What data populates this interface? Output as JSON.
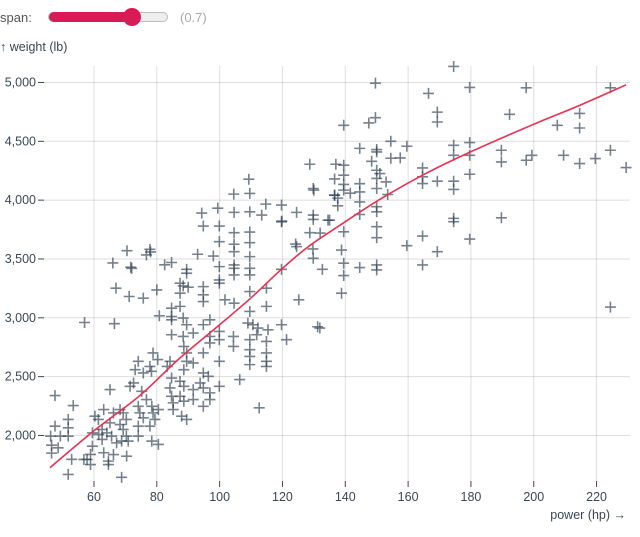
{
  "controls": {
    "span_label": "span:",
    "span_value": 0.7,
    "span_display": "(0.7)",
    "span_min": 0,
    "span_max": 1,
    "accent_color": "#d81b56"
  },
  "chart_data": {
    "type": "scatter",
    "xlabel": "power (hp) →",
    "ylabel": "↑ weight (lb)",
    "xlim": [
      46,
      230
    ],
    "ylim": [
      1613,
      5140
    ],
    "grid": true,
    "x_ticks": [
      60,
      80,
      100,
      120,
      140,
      160,
      180,
      200,
      220
    ],
    "y_ticks": [
      2000,
      2500,
      3000,
      3500,
      4000,
      4500,
      5000
    ],
    "y_tick_labels": [
      "2,000",
      "2,500",
      "3,000",
      "3,500",
      "4,000",
      "4,500",
      "5,000"
    ],
    "marker": "plus",
    "point_color": "#2c3e50",
    "line_color": "#e8304f",
    "points": [
      [
        174.5,
        5136
      ],
      [
        149.6,
        4994
      ],
      [
        179.6,
        4958
      ],
      [
        197.6,
        4955
      ],
      [
        224.4,
        4955
      ],
      [
        166.5,
        4907
      ],
      [
        169.3,
        4748
      ],
      [
        169.3,
        4664
      ],
      [
        192.3,
        4729
      ],
      [
        214.6,
        4737
      ],
      [
        214.6,
        4613
      ],
      [
        207.5,
        4636
      ],
      [
        139.5,
        4636
      ],
      [
        147.5,
        4656
      ],
      [
        149.6,
        4701
      ],
      [
        150,
        4430
      ],
      [
        150,
        4410
      ],
      [
        154.5,
        4500
      ],
      [
        159.6,
        4458
      ],
      [
        144.6,
        4440
      ],
      [
        148.4,
        4330
      ],
      [
        154.5,
        4356
      ],
      [
        157.5,
        4359
      ],
      [
        139.5,
        4297
      ],
      [
        139.5,
        4212
      ],
      [
        139.5,
        4133
      ],
      [
        139.5,
        4085
      ],
      [
        136.6,
        4042
      ],
      [
        137.6,
        3952
      ],
      [
        141.6,
        4059
      ],
      [
        144.6,
        4140
      ],
      [
        144.6,
        4070
      ],
      [
        144.6,
        3985
      ],
      [
        144.6,
        3878
      ],
      [
        150,
        4254
      ],
      [
        150,
        4184
      ],
      [
        150,
        4099
      ],
      [
        150,
        3944
      ],
      [
        150,
        3901
      ],
      [
        150,
        3774
      ],
      [
        150,
        3681
      ],
      [
        151,
        4226
      ],
      [
        153,
        4155
      ],
      [
        153.5,
        4048
      ],
      [
        164.6,
        4274
      ],
      [
        164.6,
        4198
      ],
      [
        164.6,
        4141
      ],
      [
        169.3,
        4161
      ],
      [
        174.5,
        4466
      ],
      [
        174.5,
        4381
      ],
      [
        174.5,
        4161
      ],
      [
        174.5,
        4091
      ],
      [
        174.5,
        3845
      ],
      [
        174.5,
        3817
      ],
      [
        179.6,
        4489
      ],
      [
        179.6,
        4381
      ],
      [
        179.6,
        4220
      ],
      [
        179.6,
        3669
      ],
      [
        189.7,
        4424
      ],
      [
        189.7,
        4325
      ],
      [
        189.7,
        3850
      ],
      [
        197.6,
        4339
      ],
      [
        199.4,
        4381
      ],
      [
        209.5,
        4381
      ],
      [
        214.6,
        4311
      ],
      [
        219.6,
        4353
      ],
      [
        224.4,
        4424
      ],
      [
        229.4,
        4277
      ],
      [
        224.4,
        3091
      ],
      [
        139.5,
        3731
      ],
      [
        138.8,
        3576
      ],
      [
        139.5,
        3464
      ],
      [
        139.5,
        3359
      ],
      [
        138.8,
        3209
      ],
      [
        144.6,
        3427
      ],
      [
        150,
        3449
      ],
      [
        150,
        3407
      ],
      [
        159.6,
        3613
      ],
      [
        164.6,
        3695
      ],
      [
        164.6,
        3449
      ],
      [
        169.3,
        3562
      ],
      [
        135,
        3830
      ],
      [
        109.6,
        4057
      ],
      [
        129.8,
        4099
      ],
      [
        136.6,
        4042
      ],
      [
        119.7,
        3958
      ],
      [
        124.5,
        3896
      ],
      [
        129.8,
        3873
      ],
      [
        129.8,
        3836
      ],
      [
        134.5,
        3830
      ],
      [
        104.6,
        3896
      ],
      [
        109.6,
        3901
      ],
      [
        119.7,
        3816
      ],
      [
        94.8,
        3780
      ],
      [
        99.9,
        3780
      ],
      [
        104.6,
        3723
      ],
      [
        109.6,
        3729
      ],
      [
        128.7,
        3723
      ],
      [
        99.9,
        3647
      ],
      [
        104.6,
        3625
      ],
      [
        104.6,
        3562
      ],
      [
        104.6,
        3449
      ],
      [
        104.6,
        3421
      ],
      [
        104.6,
        3364
      ],
      [
        109.6,
        3638
      ],
      [
        109.6,
        3520
      ],
      [
        109.6,
        3421
      ],
      [
        109.6,
        3364
      ],
      [
        124.5,
        3605
      ],
      [
        129.8,
        3506
      ],
      [
        132.7,
        3412
      ],
      [
        119.7,
        3412
      ],
      [
        98,
        3525
      ],
      [
        99.9,
        3435
      ],
      [
        99.9,
        3322
      ],
      [
        99.9,
        3294
      ],
      [
        77.8,
        3582
      ],
      [
        76.7,
        3534
      ],
      [
        84.7,
        3470
      ],
      [
        89.5,
        3412
      ],
      [
        89.5,
        3379
      ],
      [
        71.7,
        3430
      ],
      [
        67,
        3252
      ],
      [
        71.2,
        3181
      ],
      [
        75.7,
        3167
      ],
      [
        80,
        3237
      ],
      [
        87.4,
        3294
      ],
      [
        88.4,
        3271
      ],
      [
        87.4,
        3209
      ],
      [
        94.8,
        3265
      ],
      [
        94.8,
        3195
      ],
      [
        94.8,
        3138
      ],
      [
        101.7,
        3153
      ],
      [
        104.6,
        3124
      ],
      [
        109.6,
        3223
      ],
      [
        114.9,
        3252
      ],
      [
        114.9,
        3097
      ],
      [
        109.6,
        3054
      ],
      [
        109,
        2955
      ],
      [
        110.6,
        2941
      ],
      [
        112.2,
        2913
      ],
      [
        111.8,
        2856
      ],
      [
        115.4,
        2898
      ],
      [
        119.7,
        2941
      ],
      [
        121.3,
        2814
      ],
      [
        131.9,
        2913
      ],
      [
        106.4,
        2475
      ],
      [
        112.6,
        2235
      ],
      [
        109.6,
        2814
      ],
      [
        109.6,
        2729
      ],
      [
        109.6,
        2672
      ],
      [
        109.6,
        2602
      ],
      [
        114.9,
        2799
      ],
      [
        114.9,
        2701
      ],
      [
        114.9,
        2630
      ],
      [
        114.9,
        2587
      ],
      [
        104.4,
        2842
      ],
      [
        104.4,
        2757
      ],
      [
        99.9,
        2884
      ],
      [
        99.9,
        2814
      ],
      [
        99.9,
        2630
      ],
      [
        99.9,
        2418
      ],
      [
        96.9,
        2983
      ],
      [
        96.9,
        2842
      ],
      [
        96.9,
        2786
      ],
      [
        94.8,
        2941
      ],
      [
        94.8,
        2701
      ],
      [
        91.6,
        2870
      ],
      [
        84.7,
        3082
      ],
      [
        84.7,
        3011
      ],
      [
        84.7,
        2983
      ],
      [
        84.7,
        2856
      ],
      [
        87.4,
        3097
      ],
      [
        88.4,
        2998
      ],
      [
        89.5,
        2941
      ],
      [
        88.4,
        2842
      ],
      [
        80.8,
        3017
      ],
      [
        88.6,
        2757
      ],
      [
        89.5,
        2701
      ],
      [
        89.5,
        2630
      ],
      [
        91.6,
        2616
      ],
      [
        94.8,
        2531
      ],
      [
        96.4,
        2503
      ],
      [
        93.8,
        2446
      ],
      [
        94.8,
        2404
      ],
      [
        96.9,
        2362
      ],
      [
        96.9,
        2305
      ],
      [
        94.8,
        2248
      ],
      [
        88.6,
        2559
      ],
      [
        87.4,
        2460
      ],
      [
        88.6,
        2418
      ],
      [
        91.6,
        2390
      ],
      [
        87.4,
        2333
      ],
      [
        88.6,
        2291
      ],
      [
        91.6,
        2305
      ],
      [
        87.9,
        2164
      ],
      [
        89.5,
        2136
      ],
      [
        85.2,
        2220
      ],
      [
        84.2,
        2630
      ],
      [
        83.3,
        2587
      ],
      [
        84.7,
        2488
      ],
      [
        84.2,
        2404
      ],
      [
        84.7,
        2333
      ],
      [
        85.2,
        2277
      ],
      [
        78.8,
        2701
      ],
      [
        80.3,
        2645
      ],
      [
        77.8,
        2587
      ],
      [
        78.3,
        2545
      ],
      [
        74.1,
        2630
      ],
      [
        75.7,
        2531
      ],
      [
        73.1,
        2559
      ],
      [
        72.6,
        2446
      ],
      [
        75.2,
        2375
      ],
      [
        76.7,
        2305
      ],
      [
        78.4,
        2248
      ],
      [
        78.8,
        2192
      ],
      [
        80.5,
        2220
      ],
      [
        79.4,
        2136
      ],
      [
        77.8,
        2079
      ],
      [
        74.1,
        2248
      ],
      [
        74.6,
        2192
      ],
      [
        75.7,
        2150
      ],
      [
        74.1,
        2079
      ],
      [
        71.5,
        2418
      ],
      [
        65.1,
        2390
      ],
      [
        68.3,
        2220
      ],
      [
        69.3,
        2192
      ],
      [
        70.3,
        2136
      ],
      [
        68.3,
        2093
      ],
      [
        69.3,
        2051
      ],
      [
        70.3,
        1994
      ],
      [
        68.8,
        1952
      ],
      [
        70.9,
        1952
      ],
      [
        66.2,
        2192
      ],
      [
        65.1,
        2107
      ],
      [
        64.1,
        2022
      ],
      [
        65.6,
        1994
      ],
      [
        67.2,
        1937
      ],
      [
        63.1,
        2220
      ],
      [
        61.4,
        2136
      ],
      [
        60.3,
        2164
      ],
      [
        62.6,
        2051
      ],
      [
        62.6,
        1966
      ],
      [
        61.5,
        2009
      ],
      [
        74.1,
        1994
      ],
      [
        78.4,
        1952
      ],
      [
        80.5,
        1924
      ],
      [
        59.5,
        2022
      ],
      [
        59.5,
        1909
      ],
      [
        56.8,
        1796
      ],
      [
        58.9,
        1753
      ],
      [
        57.8,
        1796
      ],
      [
        58.9,
        1839
      ],
      [
        63.1,
        1853
      ],
      [
        64.6,
        1782
      ],
      [
        64.6,
        1753
      ],
      [
        66.2,
        1838
      ],
      [
        70.4,
        1824
      ],
      [
        51.8,
        2136
      ],
      [
        51.8,
        2065
      ],
      [
        51.8,
        1994
      ],
      [
        47.6,
        2339
      ],
      [
        53.4,
        2254
      ],
      [
        47.6,
        2079
      ],
      [
        46.2,
        1994
      ],
      [
        49.3,
        1994
      ],
      [
        46.5,
        1917
      ],
      [
        48.6,
        1895
      ],
      [
        46.5,
        1850
      ],
      [
        52.9,
        1797
      ],
      [
        51.8,
        1669
      ],
      [
        68.8,
        1644
      ],
      [
        104.5,
        4051
      ],
      [
        109.3,
        4178
      ],
      [
        114.7,
        3966
      ],
      [
        113.4,
        3873
      ],
      [
        99.4,
        3932
      ],
      [
        94.3,
        3890
      ],
      [
        119.8,
        3822
      ],
      [
        130,
        4085
      ],
      [
        128.7,
        4305
      ],
      [
        137,
        4305
      ],
      [
        136.6,
        4180
      ],
      [
        137.6,
        4017
      ],
      [
        124.2,
        3627
      ],
      [
        129.7,
        3585
      ],
      [
        132,
        3720
      ],
      [
        125.2,
        3153
      ],
      [
        131.2,
        2924
      ],
      [
        66,
        3466
      ],
      [
        72,
        3420
      ],
      [
        70.5,
        3570
      ],
      [
        78,
        3560
      ],
      [
        82.5,
        3450
      ],
      [
        93,
        3540
      ],
      [
        90,
        3260
      ],
      [
        66.5,
        2950
      ],
      [
        57,
        2960
      ]
    ],
    "loess_line": [
      [
        46,
        1727
      ],
      [
        60,
        2040
      ],
      [
        74.6,
        2339
      ],
      [
        87,
        2650
      ],
      [
        100,
        2941
      ],
      [
        110,
        3170
      ],
      [
        119.7,
        3413
      ],
      [
        128,
        3600
      ],
      [
        137.6,
        3774
      ],
      [
        150,
        3990
      ],
      [
        164.6,
        4212
      ],
      [
        179.6,
        4407
      ],
      [
        199.2,
        4636
      ],
      [
        215,
        4810
      ],
      [
        229.4,
        4980
      ]
    ]
  }
}
